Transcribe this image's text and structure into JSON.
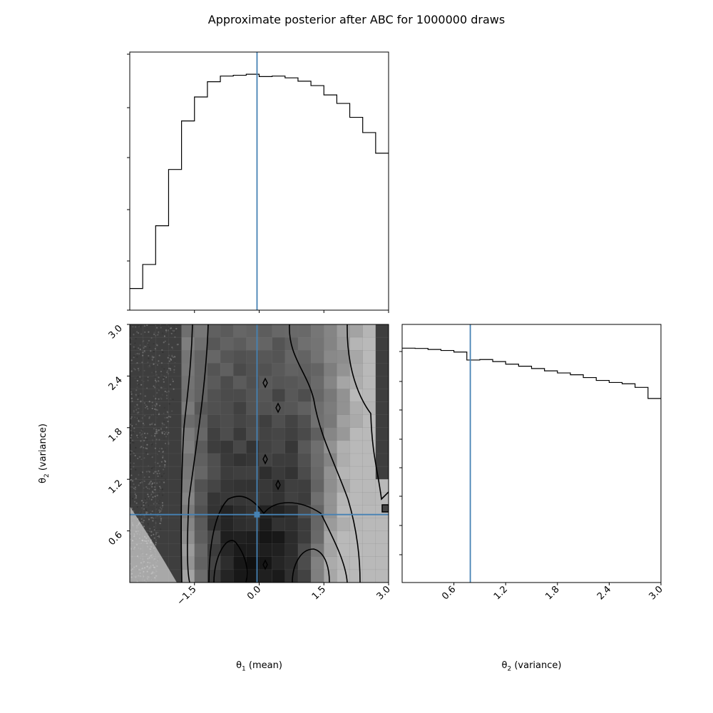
{
  "title": "Approximate posterior after ABC for 1000000 draws",
  "xlabel_theta1_prefix": "θ",
  "xlabel_theta1_sub": "1",
  "xlabel_theta1_suffix": " (mean)",
  "xlabel_theta2_prefix": "θ",
  "xlabel_theta2_sub": "2",
  "xlabel_theta2_suffix": " (variance)",
  "ylabel_theta2_prefix": "θ",
  "ylabel_theta2_sub": "2",
  "ylabel_theta2_suffix": " (variance)",
  "colors": {
    "truth": "#4682b4",
    "line": "#000000"
  },
  "chart_data": [
    {
      "type": "histogram",
      "panel": "theta1-marginal",
      "xlim": [
        -3.0,
        3.0
      ],
      "bin_edges": [
        -3.0,
        -2.7,
        -2.4,
        -2.1,
        -1.8,
        -1.5,
        -1.2,
        -0.9,
        -0.6,
        -0.3,
        0.0,
        0.3,
        0.6,
        0.9,
        1.2,
        1.5,
        1.8,
        2.1,
        2.4,
        2.7,
        3.0
      ],
      "values": [
        0.084,
        0.177,
        0.327,
        0.545,
        0.733,
        0.826,
        0.885,
        0.907,
        0.91,
        0.914,
        0.905,
        0.907,
        0.9,
        0.887,
        0.87,
        0.834,
        0.801,
        0.747,
        0.688,
        0.608
      ],
      "x_ticks": [
        "−1.5",
        "0.0",
        "1.5",
        "3.0"
      ],
      "truth_x": -0.05
    },
    {
      "type": "heatmap",
      "panel": "theta1-theta2-joint",
      "xlim": [
        -3.0,
        3.0
      ],
      "ylim": [
        0.0,
        3.0
      ],
      "x_ticks": [
        "−1.5",
        "0.0",
        "1.5",
        "3.0"
      ],
      "y_ticks": [
        "0.6",
        "1.2",
        "1.8",
        "2.4",
        "3.0"
      ],
      "truth": [
        -0.05,
        0.79
      ]
    },
    {
      "type": "histogram",
      "panel": "theta2-marginal",
      "xlim": [
        0.0,
        3.0
      ],
      "bin_edges": [
        0.0,
        0.15,
        0.3,
        0.45,
        0.6,
        0.75,
        0.9,
        1.05,
        1.2,
        1.35,
        1.5,
        1.65,
        1.8,
        1.95,
        2.1,
        2.25,
        2.4,
        2.55,
        2.7,
        2.85,
        3.0
      ],
      "values": [
        0.908,
        0.907,
        0.903,
        0.899,
        0.893,
        0.862,
        0.864,
        0.856,
        0.846,
        0.838,
        0.829,
        0.82,
        0.812,
        0.805,
        0.794,
        0.783,
        0.775,
        0.77,
        0.756,
        0.713
      ],
      "x_ticks": [
        "0.6",
        "1.2",
        "1.8",
        "2.4",
        "3.0"
      ],
      "truth_x": 0.79
    }
  ]
}
